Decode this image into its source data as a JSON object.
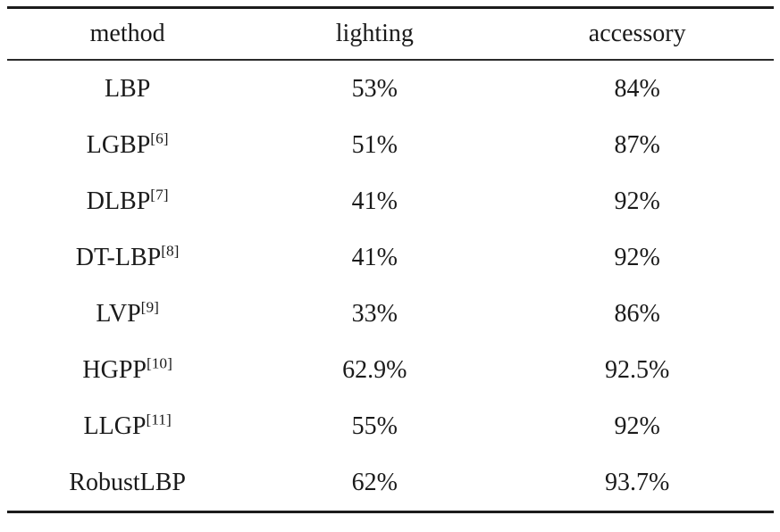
{
  "table": {
    "headers": [
      {
        "label": "method"
      },
      {
        "label": "lighting"
      },
      {
        "label": "accessory"
      }
    ],
    "rows": [
      {
        "method": "LBP",
        "ref": "",
        "lighting": "53%",
        "accessory": "84%"
      },
      {
        "method": "LGBP",
        "ref": "[6]",
        "lighting": "51%",
        "accessory": "87%"
      },
      {
        "method": "DLBP",
        "ref": "[7]",
        "lighting": "41%",
        "accessory": "92%"
      },
      {
        "method": "DT-LBP",
        "ref": "[8]",
        "lighting": "41%",
        "accessory": "92%"
      },
      {
        "method": "LVP",
        "ref": "[9]",
        "lighting": "33%",
        "accessory": "86%"
      },
      {
        "method": "HGPP",
        "ref": "[10]",
        "lighting": "62.9%",
        "accessory": "92.5%"
      },
      {
        "method": "LLGP",
        "ref": "[11]",
        "lighting": "55%",
        "accessory": "92%"
      },
      {
        "method": "RobustLBP",
        "ref": "",
        "lighting": "62%",
        "accessory": "93.7%"
      }
    ],
    "colors": {
      "text": "#1a1a1a",
      "rule": "#1c1c1c",
      "background": "#ffffff"
    }
  }
}
